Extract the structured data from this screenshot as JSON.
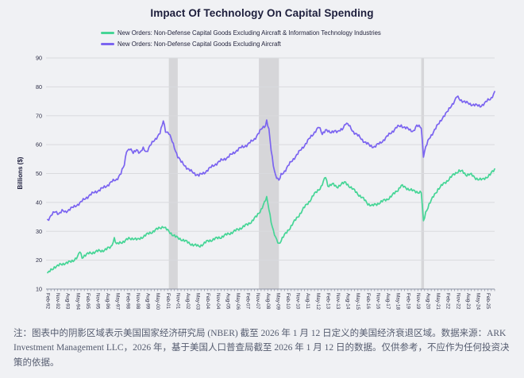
{
  "header": {
    "title": "Impact Of Technology On Capital Spending"
  },
  "colors": {
    "background": "#f0f1f4",
    "grid": "#d9dade",
    "recession_band": "#d6d6d9",
    "axis": "#8d92a3",
    "tick_text": "#2c2d45",
    "title_text": "#1d1e3c",
    "footnote_text": "#555c6f",
    "series_green": "#46d596",
    "series_purple": "#7b64f0"
  },
  "footnote": {
    "text": "注：图表中的阴影区域表示美国国家经济研究局 (NBER) 截至 2026 年 1 月 12 日定义的美国经济衰退区域。数据来源：ARK Investment Management LLC，2026 年，基于美国人口普查局截至 2026 年 1 月 12 日的数据。仅供参考，不应作为任何投资决策的依据。"
  },
  "chart_data": {
    "type": "line",
    "title": "Impact Of Technology On Capital Spending",
    "xlabel": "",
    "ylabel": "Billions ($)",
    "ylim": [
      10,
      90
    ],
    "yticks": [
      10,
      20,
      30,
      40,
      50,
      60,
      70,
      80,
      90
    ],
    "grid": "horizontal",
    "legend_position": "top-left",
    "x_unit": "months since Feb-1992",
    "x_max": 402,
    "xtick_step_months": 9,
    "minor_tick_step_months": 3,
    "xtick_labels": [
      "Feb-92",
      "Nov-92",
      "Aug-93",
      "May-94",
      "Feb-95",
      "Nov-95",
      "Aug-96",
      "May-97",
      "Feb-98",
      "Nov-98",
      "Aug-99",
      "May-00",
      "Feb-01",
      "Nov-01",
      "Aug-02",
      "May-03",
      "Feb-04",
      "Nov-04",
      "Aug-05",
      "May-06",
      "Feb-07",
      "Nov-07",
      "Aug-08",
      "May-09",
      "Feb-10",
      "Nov-10",
      "Aug-11",
      "May-12",
      "Feb-13",
      "Nov-13",
      "Aug-14",
      "May-15",
      "Feb-16",
      "Nov-16",
      "Aug-17",
      "May-18",
      "Feb-19",
      "Nov-19",
      "Aug-20",
      "May-21",
      "Feb-22",
      "Nov-22",
      "Aug-23",
      "May-24",
      "Feb-25"
    ],
    "recession_shading_months": [
      [
        109,
        117
      ],
      [
        190,
        208
      ],
      [
        336,
        338.5
      ]
    ],
    "recession_shading_dates": [
      "Mar-2001 to Nov-2001",
      "Dec-2007 to Jun-2009",
      "Feb-2020 to Apr-2020"
    ],
    "series": [
      {
        "name": "New Orders: Non-Defense Capital Goods Excluding Aircraft & Information Technology Industries",
        "color": "#46d596",
        "anchors_month_value": [
          [
            0,
            15.3
          ],
          [
            3,
            16.6
          ],
          [
            6,
            17.6
          ],
          [
            9,
            17.9
          ],
          [
            12,
            18.6
          ],
          [
            15,
            18.9
          ],
          [
            18,
            19.0
          ],
          [
            21,
            19.6
          ],
          [
            24,
            20.2
          ],
          [
            27,
            21.0
          ],
          [
            29,
            23.0
          ],
          [
            31,
            21.0
          ],
          [
            33,
            21.6
          ],
          [
            37,
            22.3
          ],
          [
            41,
            22.7
          ],
          [
            45,
            23.1
          ],
          [
            49,
            23.3
          ],
          [
            53,
            23.8
          ],
          [
            57,
            24.6
          ],
          [
            60,
            27.6
          ],
          [
            62,
            25.4
          ],
          [
            65,
            26.0
          ],
          [
            69,
            26.6
          ],
          [
            73,
            27.4
          ],
          [
            77,
            27.6
          ],
          [
            81,
            27.0
          ],
          [
            85,
            28.0
          ],
          [
            89,
            28.8
          ],
          [
            93,
            29.6
          ],
          [
            97,
            30.4
          ],
          [
            101,
            31.2
          ],
          [
            104,
            31.7
          ],
          [
            108,
            30.2
          ],
          [
            112,
            29.0
          ],
          [
            117,
            27.6
          ],
          [
            122,
            27.0
          ],
          [
            127,
            25.9
          ],
          [
            132,
            25.2
          ],
          [
            136,
            24.8
          ],
          [
            140,
            25.6
          ],
          [
            144,
            26.6
          ],
          [
            150,
            27.3
          ],
          [
            156,
            28.0
          ],
          [
            162,
            29.0
          ],
          [
            168,
            30.0
          ],
          [
            174,
            31.2
          ],
          [
            180,
            32.4
          ],
          [
            184,
            33.6
          ],
          [
            188,
            35.2
          ],
          [
            192,
            37.6
          ],
          [
            195,
            39.8
          ],
          [
            197,
            41.6
          ],
          [
            199,
            38.0
          ],
          [
            201,
            33.5
          ],
          [
            203,
            30.0
          ],
          [
            205,
            27.6
          ],
          [
            208,
            25.7
          ],
          [
            211,
            27.6
          ],
          [
            215,
            29.6
          ],
          [
            220,
            32.4
          ],
          [
            225,
            35.0
          ],
          [
            230,
            37.8
          ],
          [
            235,
            40.2
          ],
          [
            239,
            42.4
          ],
          [
            243,
            44.2
          ],
          [
            246,
            45.4
          ],
          [
            250,
            48.8
          ],
          [
            252,
            45.8
          ],
          [
            256,
            46.4
          ],
          [
            260,
            45.2
          ],
          [
            264,
            46.4
          ],
          [
            268,
            46.8
          ],
          [
            271,
            45.8
          ],
          [
            275,
            44.4
          ],
          [
            279,
            43.0
          ],
          [
            284,
            41.2
          ],
          [
            288,
            39.6
          ],
          [
            292,
            38.8
          ],
          [
            296,
            39.4
          ],
          [
            300,
            40.2
          ],
          [
            305,
            41.0
          ],
          [
            310,
            42.4
          ],
          [
            315,
            44.4
          ],
          [
            318,
            45.8
          ],
          [
            321,
            45.2
          ],
          [
            325,
            44.6
          ],
          [
            329,
            43.9
          ],
          [
            333,
            43.6
          ],
          [
            336,
            43.5
          ],
          [
            338,
            33.2
          ],
          [
            340,
            36.5
          ],
          [
            343,
            39.4
          ],
          [
            347,
            42.0
          ],
          [
            351,
            44.6
          ],
          [
            355,
            46.0
          ],
          [
            359,
            47.4
          ],
          [
            363,
            48.8
          ],
          [
            367,
            50.2
          ],
          [
            370,
            51.0
          ],
          [
            373,
            50.6
          ],
          [
            376,
            49.6
          ],
          [
            380,
            49.8
          ],
          [
            384,
            48.6
          ],
          [
            388,
            48.0
          ],
          [
            391,
            47.8
          ],
          [
            394,
            48.6
          ],
          [
            398,
            49.6
          ],
          [
            402,
            51.4
          ]
        ]
      },
      {
        "name": "New Orders: Non-Defense Capital Goods Excluding Aircraft",
        "color": "#7b64f0",
        "anchors_month_value": [
          [
            0,
            34.0
          ],
          [
            4,
            35.8
          ],
          [
            7,
            36.8
          ],
          [
            10,
            36.2
          ],
          [
            13,
            37.0
          ],
          [
            16,
            36.6
          ],
          [
            20,
            37.8
          ],
          [
            24,
            38.4
          ],
          [
            28,
            39.6
          ],
          [
            33,
            41.0
          ],
          [
            38,
            42.6
          ],
          [
            42,
            43.4
          ],
          [
            46,
            44.2
          ],
          [
            50,
            45.0
          ],
          [
            54,
            46.0
          ],
          [
            58,
            47.2
          ],
          [
            62,
            48.0
          ],
          [
            66,
            50.0
          ],
          [
            69,
            53.0
          ],
          [
            71,
            58.0
          ],
          [
            74,
            58.5
          ],
          [
            77,
            57.0
          ],
          [
            80,
            58.5
          ],
          [
            83,
            57.0
          ],
          [
            86,
            58.6
          ],
          [
            89,
            57.6
          ],
          [
            92,
            59.5
          ],
          [
            95,
            61.0
          ],
          [
            98,
            62.5
          ],
          [
            101,
            64.0
          ],
          [
            103,
            66.5
          ],
          [
            104,
            68.3
          ],
          [
            106,
            64.8
          ],
          [
            109,
            64.0
          ],
          [
            112,
            61.0
          ],
          [
            115,
            58.0
          ],
          [
            117,
            56.0
          ],
          [
            120,
            54.0
          ],
          [
            124,
            52.5
          ],
          [
            128,
            51.0
          ],
          [
            132,
            50.0
          ],
          [
            136,
            49.4
          ],
          [
            140,
            50.0
          ],
          [
            144,
            51.3
          ],
          [
            150,
            53.0
          ],
          [
            156,
            54.5
          ],
          [
            162,
            55.6
          ],
          [
            168,
            57.4
          ],
          [
            174,
            59.0
          ],
          [
            180,
            60.0
          ],
          [
            186,
            62.0
          ],
          [
            190,
            64.0
          ],
          [
            193,
            65.8
          ],
          [
            196,
            66.8
          ],
          [
            197,
            68.4
          ],
          [
            199,
            65.0
          ],
          [
            201,
            58.0
          ],
          [
            203,
            53.0
          ],
          [
            205,
            49.5
          ],
          [
            208,
            47.4
          ],
          [
            210,
            49.5
          ],
          [
            213,
            50.8
          ],
          [
            217,
            53.0
          ],
          [
            222,
            55.5
          ],
          [
            227,
            57.8
          ],
          [
            232,
            60.3
          ],
          [
            237,
            62.8
          ],
          [
            241,
            64.8
          ],
          [
            244,
            66.0
          ],
          [
            247,
            63.8
          ],
          [
            250,
            65.2
          ],
          [
            254,
            64.0
          ],
          [
            258,
            65.0
          ],
          [
            261,
            64.2
          ],
          [
            265,
            65.5
          ],
          [
            268,
            67.4
          ],
          [
            271,
            66.6
          ],
          [
            275,
            64.5
          ],
          [
            280,
            62.8
          ],
          [
            285,
            61.0
          ],
          [
            290,
            59.6
          ],
          [
            294,
            59.3
          ],
          [
            299,
            60.5
          ],
          [
            304,
            62.3
          ],
          [
            309,
            64.2
          ],
          [
            314,
            66.0
          ],
          [
            318,
            66.6
          ],
          [
            322,
            65.8
          ],
          [
            326,
            65.0
          ],
          [
            329,
            64.8
          ],
          [
            332,
            66.4
          ],
          [
            335,
            66.2
          ],
          [
            336,
            66.0
          ],
          [
            338,
            56.2
          ],
          [
            340,
            59.0
          ],
          [
            343,
            62.0
          ],
          [
            347,
            64.5
          ],
          [
            351,
            66.8
          ],
          [
            355,
            69.3
          ],
          [
            359,
            71.0
          ],
          [
            363,
            73.6
          ],
          [
            366,
            75.0
          ],
          [
            368,
            76.6
          ],
          [
            371,
            75.6
          ],
          [
            374,
            75.0
          ],
          [
            377,
            74.4
          ],
          [
            381,
            74.0
          ],
          [
            385,
            73.6
          ],
          [
            389,
            73.4
          ],
          [
            393,
            74.2
          ],
          [
            396,
            75.4
          ],
          [
            399,
            76.2
          ],
          [
            402,
            78.0
          ]
        ]
      }
    ]
  }
}
